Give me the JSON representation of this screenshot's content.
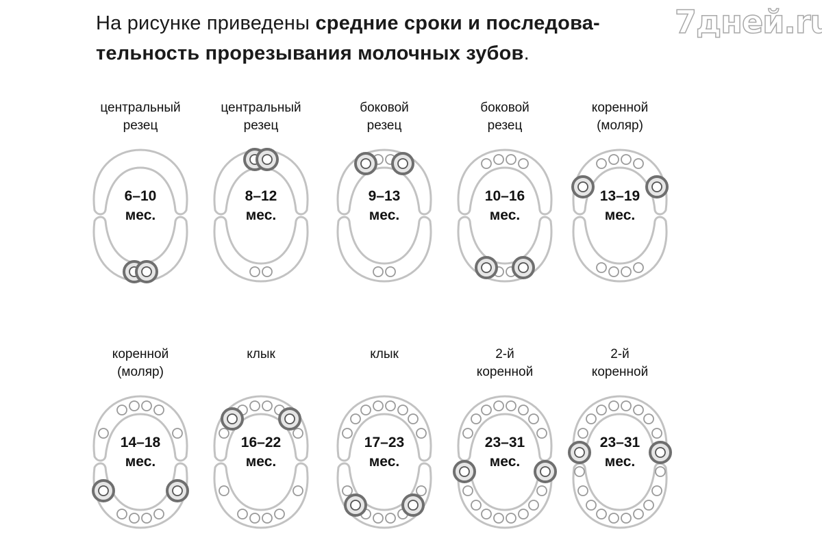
{
  "intro": {
    "prefix": "На рисунке приведены ",
    "bold_line1": "средние сроки и последова-",
    "bold_line2": "тельность прорезывания молочных зубов",
    "suffix": "."
  },
  "watermark": "7дней.ru",
  "stages": [
    {
      "label_line1": "центральный",
      "label_line2": "резец",
      "age": "6–10",
      "unit": "мес."
    },
    {
      "label_line1": "центральный",
      "label_line2": "резец",
      "age": "8–12",
      "unit": "мес."
    },
    {
      "label_line1": "боковой",
      "label_line2": "резец",
      "age": "9–13",
      "unit": "мес."
    },
    {
      "label_line1": "боковой",
      "label_line2": "резец",
      "age": "10–16",
      "unit": "мес."
    },
    {
      "label_line1": "коренной",
      "label_line2": "(моляр)",
      "age": "13–19",
      "unit": "мес."
    },
    {
      "label_line1": "коренной",
      "label_line2": "(моляр)",
      "age": "14–18",
      "unit": "мес."
    },
    {
      "label_line1": "клык",
      "label_line2": "",
      "age": "16–22",
      "unit": "мес."
    },
    {
      "label_line1": "клык",
      "label_line2": "",
      "age": "17–23",
      "unit": "мес."
    },
    {
      "label_line1": "2-й",
      "label_line2": "коренной",
      "age": "23–31",
      "unit": "мес."
    },
    {
      "label_line1": "2-й",
      "label_line2": "коренной",
      "age": "23–31",
      "unit": "мес."
    }
  ]
}
